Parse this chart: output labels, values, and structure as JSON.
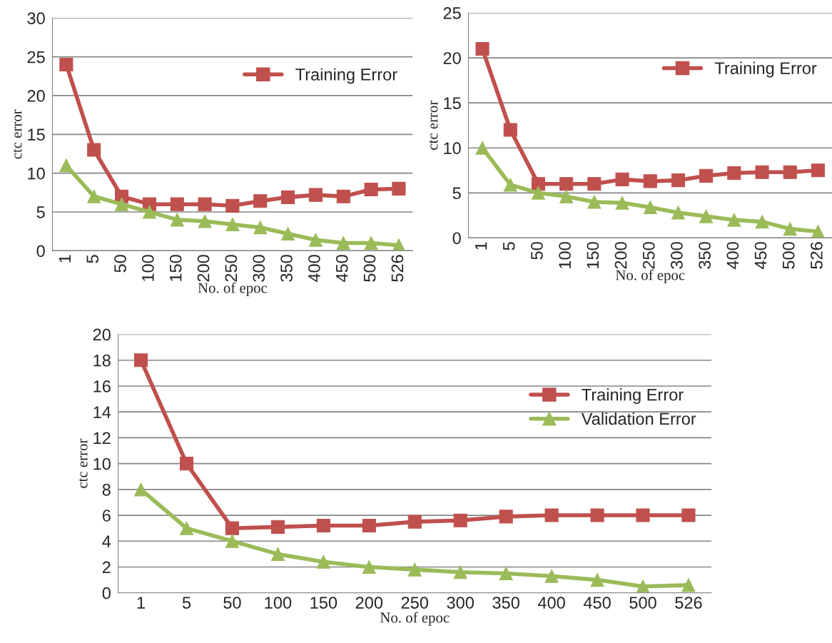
{
  "chart_data": [
    {
      "type": "line",
      "xlabel": "No. of epoc",
      "ylabel": "ctc error",
      "categories": [
        "1",
        "5",
        "50",
        "100",
        "150",
        "200",
        "250",
        "300",
        "350",
        "400",
        "450",
        "500",
        "526"
      ],
      "ylim": [
        0,
        30
      ],
      "yticks": [
        0,
        5,
        10,
        15,
        20,
        25,
        30
      ],
      "grid": "y",
      "legend": "top right",
      "series": [
        {
          "name": "Training Error",
          "color": "#c0504d",
          "marker": "square",
          "values": [
            24,
            13,
            7,
            6,
            6,
            6,
            5.8,
            6.4,
            6.9,
            7.2,
            7,
            7.9,
            8
          ]
        },
        {
          "color": "#9bbb59",
          "marker": "triangle",
          "values": [
            11,
            7,
            6,
            5,
            4,
            3.8,
            3.4,
            3,
            2.2,
            1.4,
            1,
            1,
            0.7
          ]
        }
      ]
    },
    {
      "type": "line",
      "xlabel": "No. of epoc",
      "ylabel": "ctc error",
      "categories": [
        "1",
        "5",
        "50",
        "100",
        "150",
        "200",
        "250",
        "300",
        "350",
        "400",
        "450",
        "500",
        "526"
      ],
      "ylim": [
        0,
        25
      ],
      "yticks": [
        0,
        5,
        10,
        15,
        20,
        25
      ],
      "grid": "y",
      "legend": "top right",
      "series": [
        {
          "name": "Training Error",
          "color": "#c0504d",
          "marker": "square",
          "values": [
            21,
            12,
            6,
            6,
            6,
            6.5,
            6.3,
            6.4,
            6.9,
            7.2,
            7.3,
            7.3,
            7.5
          ]
        },
        {
          "color": "#9bbb59",
          "marker": "triangle",
          "values": [
            10,
            5.9,
            5,
            4.6,
            4,
            3.9,
            3.4,
            2.8,
            2.4,
            2,
            1.8,
            1,
            0.7
          ]
        }
      ]
    },
    {
      "type": "line",
      "xlabel": "No. of epoc",
      "ylabel": "ctc error",
      "categories": [
        "1",
        "5",
        "50",
        "100",
        "150",
        "200",
        "250",
        "300",
        "350",
        "400",
        "450",
        "500",
        "526"
      ],
      "ylim": [
        0,
        20
      ],
      "yticks": [
        0,
        2,
        4,
        6,
        8,
        10,
        12,
        14,
        16,
        18,
        20
      ],
      "grid": "y",
      "legend": "top right",
      "series": [
        {
          "name": "Training Error",
          "color": "#c0504d",
          "marker": "square",
          "values": [
            18,
            10,
            5,
            5.1,
            5.2,
            5.2,
            5.5,
            5.6,
            5.9,
            6,
            6,
            6,
            6
          ]
        },
        {
          "name": "Validation Error",
          "color": "#9bbb59",
          "marker": "triangle",
          "values": [
            8,
            5,
            4,
            3,
            2.4,
            2,
            1.8,
            1.6,
            1.5,
            1.3,
            1,
            0.5,
            0.6
          ]
        }
      ]
    }
  ]
}
